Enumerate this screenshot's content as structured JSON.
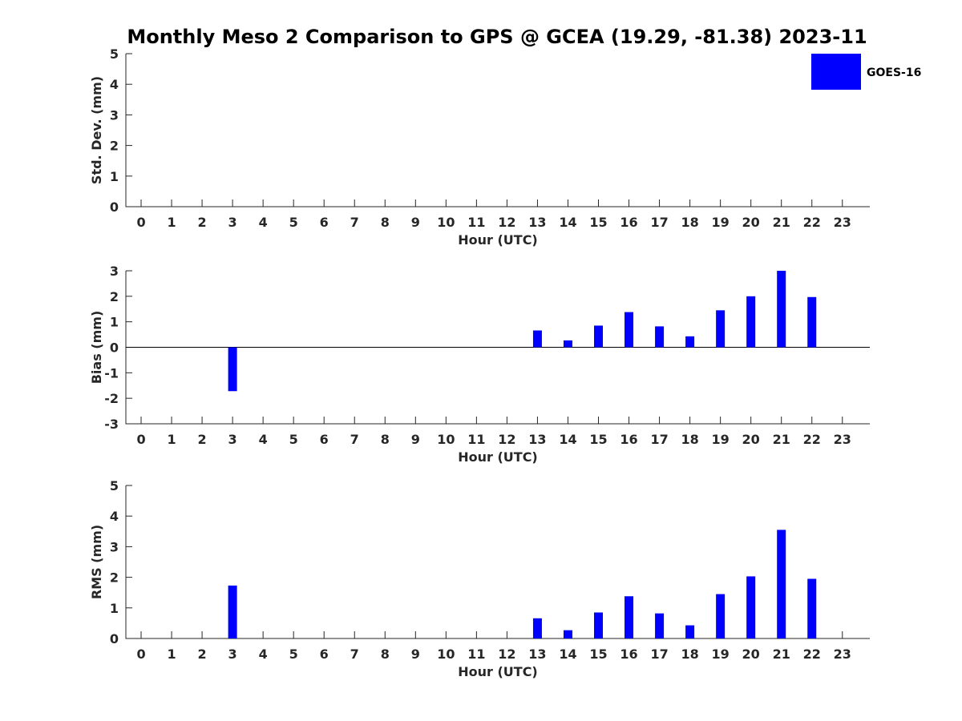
{
  "chart_data": {
    "title": "Monthly Meso 2 Comparison to GPS @ GCEA (19.29, -81.38) 2023-11",
    "legend": {
      "entries": [
        "GOES-16"
      ],
      "placement": "top-right",
      "color": "#0000ff"
    },
    "panels": [
      {
        "type": "bar",
        "ylabel": "Std. Dev. (mm)",
        "xlabel": "Hour (UTC)",
        "categories": [
          0,
          1,
          2,
          3,
          4,
          5,
          6,
          7,
          8,
          9,
          10,
          11,
          12,
          13,
          14,
          15,
          16,
          17,
          18,
          19,
          20,
          21,
          22,
          23
        ],
        "ylim": [
          0,
          5
        ],
        "yticks": [
          0,
          1,
          2,
          3,
          4,
          5
        ],
        "series": [
          {
            "name": "GOES-16",
            "color": "#0000ff",
            "values": [
              null,
              null,
              null,
              0,
              null,
              null,
              null,
              null,
              null,
              null,
              null,
              null,
              null,
              0,
              0,
              0,
              0,
              0,
              0,
              0,
              0,
              0,
              0,
              null
            ]
          }
        ]
      },
      {
        "type": "bar",
        "ylabel": "Bias (mm)",
        "xlabel": "Hour (UTC)",
        "categories": [
          0,
          1,
          2,
          3,
          4,
          5,
          6,
          7,
          8,
          9,
          10,
          11,
          12,
          13,
          14,
          15,
          16,
          17,
          18,
          19,
          20,
          21,
          22,
          23
        ],
        "ylim": [
          -3,
          3
        ],
        "yticks": [
          -3,
          -2,
          -1,
          0,
          1,
          2,
          3
        ],
        "zero_line": true,
        "series": [
          {
            "name": "GOES-16",
            "color": "#0000ff",
            "values": [
              null,
              null,
              null,
              -1.72,
              null,
              null,
              null,
              null,
              null,
              null,
              null,
              null,
              null,
              0.66,
              0.27,
              0.85,
              1.38,
              0.82,
              0.43,
              1.45,
              2.0,
              3.0,
              1.97,
              null
            ]
          }
        ]
      },
      {
        "type": "bar",
        "ylabel": "RMS (mm)",
        "xlabel": "Hour (UTC)",
        "categories": [
          0,
          1,
          2,
          3,
          4,
          5,
          6,
          7,
          8,
          9,
          10,
          11,
          12,
          13,
          14,
          15,
          16,
          17,
          18,
          19,
          20,
          21,
          22,
          23
        ],
        "ylim": [
          0,
          5
        ],
        "yticks": [
          0,
          1,
          2,
          3,
          4,
          5
        ],
        "series": [
          {
            "name": "GOES-16",
            "color": "#0000ff",
            "values": [
              null,
              null,
              null,
              1.73,
              null,
              null,
              null,
              null,
              null,
              null,
              null,
              null,
              null,
              0.66,
              0.27,
              0.85,
              1.38,
              0.82,
              0.43,
              1.45,
              2.03,
              3.55,
              1.95,
              null
            ]
          }
        ]
      }
    ]
  }
}
